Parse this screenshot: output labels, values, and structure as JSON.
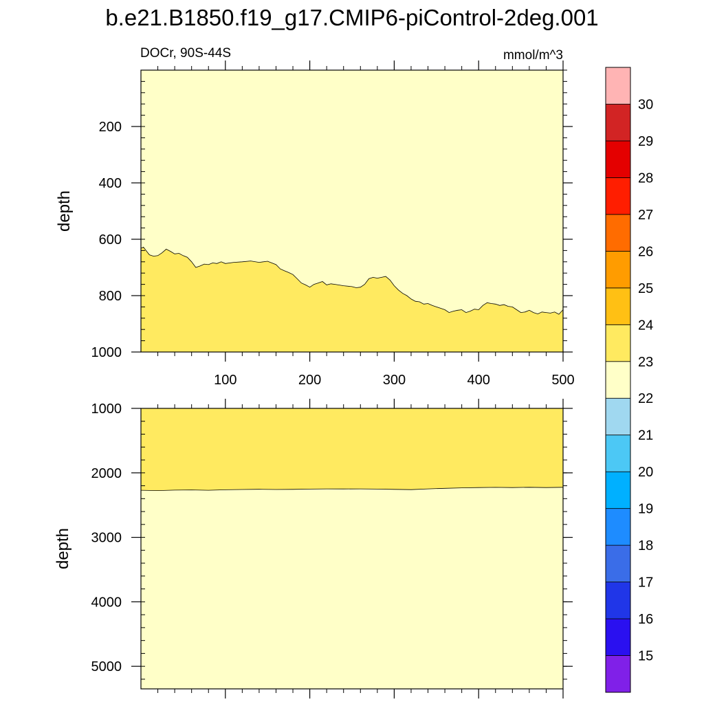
{
  "title": "b.e21.B1850.f19_g17.CMIP6-piControl-2deg.001",
  "chart_data": {
    "type": "filled-contour",
    "variable_label": "DOCr, 90S-44S",
    "units_label": "mmol/m^3",
    "xlim": [
      0,
      500
    ],
    "x_ticks": [
      "100",
      "200",
      "300",
      "400",
      "500"
    ],
    "x_tick_values": [
      100,
      200,
      300,
      400,
      500
    ],
    "upper_panel": {
      "ylabel": "depth",
      "ylim": [
        0,
        1000
      ],
      "y_ticks": [
        "200",
        "400",
        "600",
        "800",
        "1000"
      ],
      "y_tick_values": [
        200,
        400,
        600,
        800,
        1000
      ],
      "background_band": "22-23",
      "fill_band": "23-24",
      "contour_level": 23,
      "contour_x": [
        0,
        3,
        6,
        10,
        15,
        20,
        25,
        30,
        35,
        40,
        45,
        50,
        55,
        60,
        65,
        70,
        75,
        80,
        85,
        90,
        95,
        100,
        110,
        120,
        130,
        140,
        150,
        160,
        165,
        170,
        175,
        180,
        185,
        190,
        195,
        200,
        205,
        210,
        215,
        220,
        225,
        230,
        240,
        250,
        255,
        260,
        265,
        270,
        275,
        280,
        285,
        290,
        295,
        300,
        305,
        310,
        315,
        320,
        325,
        330,
        335,
        340,
        345,
        350,
        355,
        360,
        365,
        370,
        375,
        380,
        385,
        390,
        395,
        400,
        405,
        410,
        415,
        420,
        425,
        430,
        435,
        440,
        445,
        450,
        455,
        460,
        465,
        470,
        475,
        480,
        485,
        490,
        495,
        500
      ],
      "contour_depth": [
        632,
        628,
        640,
        655,
        660,
        658,
        648,
        635,
        643,
        652,
        650,
        658,
        664,
        680,
        700,
        695,
        688,
        690,
        684,
        686,
        680,
        686,
        682,
        680,
        677,
        682,
        678,
        690,
        705,
        712,
        718,
        725,
        740,
        755,
        762,
        770,
        760,
        755,
        750,
        762,
        758,
        760,
        765,
        768,
        772,
        770,
        760,
        740,
        735,
        738,
        735,
        732,
        745,
        765,
        780,
        792,
        800,
        812,
        820,
        822,
        830,
        828,
        835,
        840,
        845,
        850,
        860,
        855,
        852,
        850,
        860,
        855,
        848,
        850,
        835,
        825,
        828,
        830,
        835,
        832,
        838,
        840,
        850,
        860,
        858,
        852,
        860,
        865,
        858,
        860,
        862,
        858,
        866,
        850
      ]
    },
    "lower_panel": {
      "ylabel": "depth",
      "ylim": [
        1000,
        5350
      ],
      "y_ticks": [
        "1000",
        "2000",
        "3000",
        "4000",
        "5000"
      ],
      "y_tick_values": [
        1000,
        2000,
        3000,
        4000,
        5000
      ],
      "background_band": "22-23",
      "fill_band": "23-24",
      "contour_level": 23,
      "contour_x": [
        0,
        20,
        40,
        60,
        80,
        100,
        120,
        140,
        160,
        180,
        200,
        220,
        240,
        260,
        280,
        300,
        320,
        340,
        360,
        380,
        400,
        420,
        440,
        460,
        480,
        500
      ],
      "contour_depth": [
        2270,
        2275,
        2268,
        2265,
        2270,
        2262,
        2258,
        2255,
        2258,
        2256,
        2252,
        2248,
        2250,
        2248,
        2252,
        2256,
        2260,
        2248,
        2240,
        2232,
        2228,
        2225,
        2228,
        2224,
        2228,
        2224
      ]
    },
    "colorbar": {
      "labels": [
        "15",
        "16",
        "17",
        "18",
        "19",
        "20",
        "21",
        "22",
        "23",
        "24",
        "25",
        "26",
        "27",
        "28",
        "29",
        "30"
      ],
      "levels": [
        15,
        16,
        17,
        18,
        19,
        20,
        21,
        22,
        23,
        24,
        25,
        26,
        27,
        28,
        29,
        30
      ],
      "colors_bottom_to_top": [
        "#8020e8",
        "#2a10f0",
        "#2036e8",
        "#3a6de8",
        "#1e8cff",
        "#00b0ff",
        "#4cc8f5",
        "#a0d8f0",
        "#ffffc8",
        "#ffea60",
        "#ffc014",
        "#ff9c00",
        "#ff6c00",
        "#ff1e00",
        "#e40000",
        "#d22424",
        "#ffb4b4"
      ]
    }
  }
}
